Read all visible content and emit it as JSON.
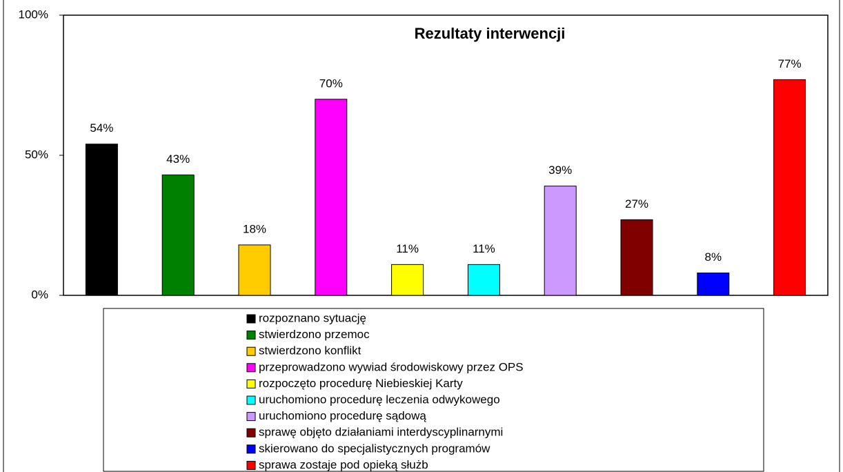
{
  "chart_data": {
    "type": "bar",
    "title": "Rezultaty interwencji",
    "ylim": [
      0,
      100
    ],
    "yticks": [
      {
        "value": 0,
        "label": "0%"
      },
      {
        "value": 50,
        "label": "50%"
      },
      {
        "value": 100,
        "label": "100%"
      }
    ],
    "legend": "bottom",
    "series": [
      {
        "name": "rozpoznano sytuację",
        "color": "#000000",
        "values": [
          54
        ],
        "value_labels": [
          "54%"
        ]
      },
      {
        "name": "stwierdzono przemoc",
        "color": "#008000",
        "values": [
          43
        ],
        "value_labels": [
          "43%"
        ]
      },
      {
        "name": "stwierdzono konflikt",
        "color": "#ffcc00",
        "values": [
          18
        ],
        "value_labels": [
          "18%"
        ]
      },
      {
        "name": "przeprowadzono wywiad środowiskowy przez OPS",
        "color": "#ff00ff",
        "values": [
          70
        ],
        "value_labels": [
          "70%"
        ]
      },
      {
        "name": "rozpoczęto procedurę Niebieskiej Karty",
        "color": "#ffff00",
        "values": [
          11
        ],
        "value_labels": [
          "11%"
        ]
      },
      {
        "name": "uruchomiono procedurę leczenia odwykowego",
        "color": "#00ffff",
        "values": [
          11
        ],
        "value_labels": [
          "11%"
        ]
      },
      {
        "name": "uruchomiono procedurę sądową",
        "color": "#cc99ff",
        "values": [
          39
        ],
        "value_labels": [
          "39%"
        ]
      },
      {
        "name": "sprawę objęto działaniami interdyscyplinarnymi",
        "color": "#800000",
        "values": [
          27
        ],
        "value_labels": [
          "27%"
        ]
      },
      {
        "name": "skierowano do specjalistycznych programów",
        "color": "#0000ff",
        "values": [
          8
        ],
        "value_labels": [
          "8%"
        ]
      },
      {
        "name": "sprawa zostaje pod opieką służb",
        "color": "#ff0000",
        "values": [
          77
        ],
        "value_labels": [
          "77%"
        ]
      }
    ]
  }
}
